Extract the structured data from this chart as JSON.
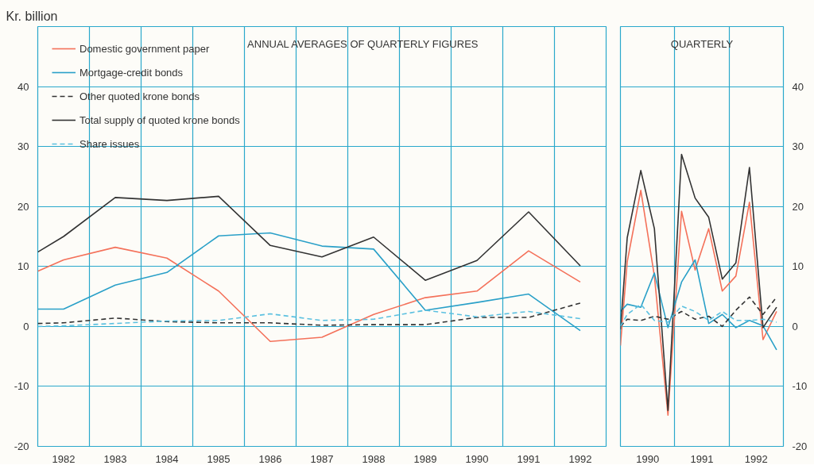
{
  "chart_data": [
    {
      "type": "line",
      "title": "ANNUAL AVERAGES OF QUARTERLY FIGURES",
      "ylabel": "Kr. billion",
      "x": [
        1981.5,
        1982,
        1983,
        1984,
        1985,
        1986,
        1987,
        1988,
        1989,
        1990,
        1991,
        1992
      ],
      "series": [
        {
          "name": "Domestic government paper",
          "color": "#f4715a",
          "line_style": "solid",
          "values": [
            9.2,
            11.1,
            13.2,
            11.4,
            5.9,
            -2.5,
            -1.8,
            2.0,
            4.8,
            5.9,
            12.6,
            7.4
          ]
        },
        {
          "name": "Mortgage-credit bonds",
          "color": "#2aa0c8",
          "line_style": "solid",
          "values": [
            2.9,
            2.9,
            6.9,
            9.0,
            15.1,
            15.6,
            13.4,
            12.9,
            2.7,
            4.0,
            5.4,
            -0.7
          ]
        },
        {
          "name": "Other quoted krone bonds",
          "color": "#333333",
          "line_style": "dashed",
          "values": [
            0.5,
            0.6,
            1.4,
            0.8,
            0.6,
            0.6,
            0.2,
            0.3,
            0.3,
            1.5,
            1.5,
            3.9
          ]
        },
        {
          "name": "Total supply of quoted krone bonds",
          "color": "#333333",
          "line_style": "solid",
          "values": [
            12.4,
            15.0,
            21.5,
            21.0,
            21.7,
            13.5,
            11.6,
            14.9,
            7.7,
            11.0,
            19.1,
            10.1
          ]
        },
        {
          "name": "Share issues",
          "color": "#5bc0e0",
          "line_style": "dashed",
          "values": [
            0.0,
            0.1,
            0.5,
            0.9,
            1.0,
            2.1,
            1.0,
            1.2,
            2.7,
            1.6,
            2.5,
            1.3
          ]
        }
      ],
      "xlim": [
        1981.5,
        1992.5
      ],
      "xticks": [
        {
          "value": 1982,
          "label": "1982"
        },
        {
          "value": 1983,
          "label": "1983"
        },
        {
          "value": 1984,
          "label": "1984"
        },
        {
          "value": 1985,
          "label": "1985"
        },
        {
          "value": 1986,
          "label": "1986"
        },
        {
          "value": 1987,
          "label": "1987"
        },
        {
          "value": 1988,
          "label": "1988"
        },
        {
          "value": 1989,
          "label": "1989"
        },
        {
          "value": 1990,
          "label": "1990"
        },
        {
          "value": 1991,
          "label": "1991"
        },
        {
          "value": 1992,
          "label": "1992"
        },
        {
          "value": 1982.5,
          "label": null
        },
        {
          "value": 1983.5,
          "label": null
        },
        {
          "value": 1984.5,
          "label": null
        },
        {
          "value": 1985.5,
          "label": null
        },
        {
          "value": 1986.5,
          "label": null
        },
        {
          "value": 1987.5,
          "label": null
        },
        {
          "value": 1988.5,
          "label": null
        },
        {
          "value": 1989.5,
          "label": null
        },
        {
          "value": 1990.5,
          "label": null
        },
        {
          "value": 1991.5,
          "label": null
        }
      ],
      "ylim": [
        -20,
        50
      ],
      "yticks": [
        -20,
        -10,
        0,
        10,
        20,
        30,
        40
      ],
      "grid": true,
      "legend": "top left"
    },
    {
      "type": "line",
      "title": "QUARTERLY",
      "x": [
        1989.5,
        1989.625,
        1989.875,
        1990.125,
        1990.375,
        1990.625,
        1990.875,
        1991.125,
        1991.375,
        1991.625,
        1991.875,
        1992.125,
        1992.375
      ],
      "series": [
        {
          "color": "#f4715a",
          "line_style": "solid",
          "values": [
            -3.2,
            10.8,
            22.7,
            8.4,
            -14.8,
            19.2,
            9.4,
            16.3,
            5.9,
            8.4,
            20.7,
            -2.2,
            2.5
          ]
        },
        {
          "color": "#2aa0c8",
          "line_style": "solid",
          "values": [
            2.5,
            3.7,
            3.2,
            8.9,
            -0.2,
            7.4,
            11.1,
            0.5,
            2.0,
            -0.2,
            1.0,
            0.1,
            -3.9
          ]
        },
        {
          "color": "#333333",
          "line_style": "dashed",
          "values": [
            0.0,
            1.2,
            1.0,
            1.7,
            1.2,
            2.5,
            1.2,
            1.7,
            0.0,
            2.7,
            4.9,
            2.0,
            4.9
          ]
        },
        {
          "color": "#333333",
          "line_style": "solid",
          "values": [
            -0.5,
            14.8,
            26.0,
            16.3,
            -14.0,
            28.7,
            21.4,
            18.2,
            7.9,
            10.6,
            26.5,
            -0.2,
            3.2
          ]
        },
        {
          "color": "#5bc0e0",
          "line_style": "dashed",
          "values": [
            0.0,
            2.0,
            3.7,
            1.0,
            0.7,
            3.4,
            2.5,
            1.0,
            2.5,
            1.0,
            1.0,
            1.2,
            0.7
          ]
        }
      ],
      "xlim": [
        1989.5,
        1992.5
      ],
      "xticks": [
        {
          "value": 1990,
          "label": "1990"
        },
        {
          "value": 1991,
          "label": "1991"
        },
        {
          "value": 1992,
          "label": "1992"
        },
        {
          "value": 1990.5,
          "label": null
        },
        {
          "value": 1991.5,
          "label": null
        }
      ],
      "ylim": [
        -20,
        50
      ],
      "yticks": [
        -20,
        -10,
        0,
        10,
        20,
        30,
        40
      ],
      "grid": true,
      "legend": false
    }
  ]
}
